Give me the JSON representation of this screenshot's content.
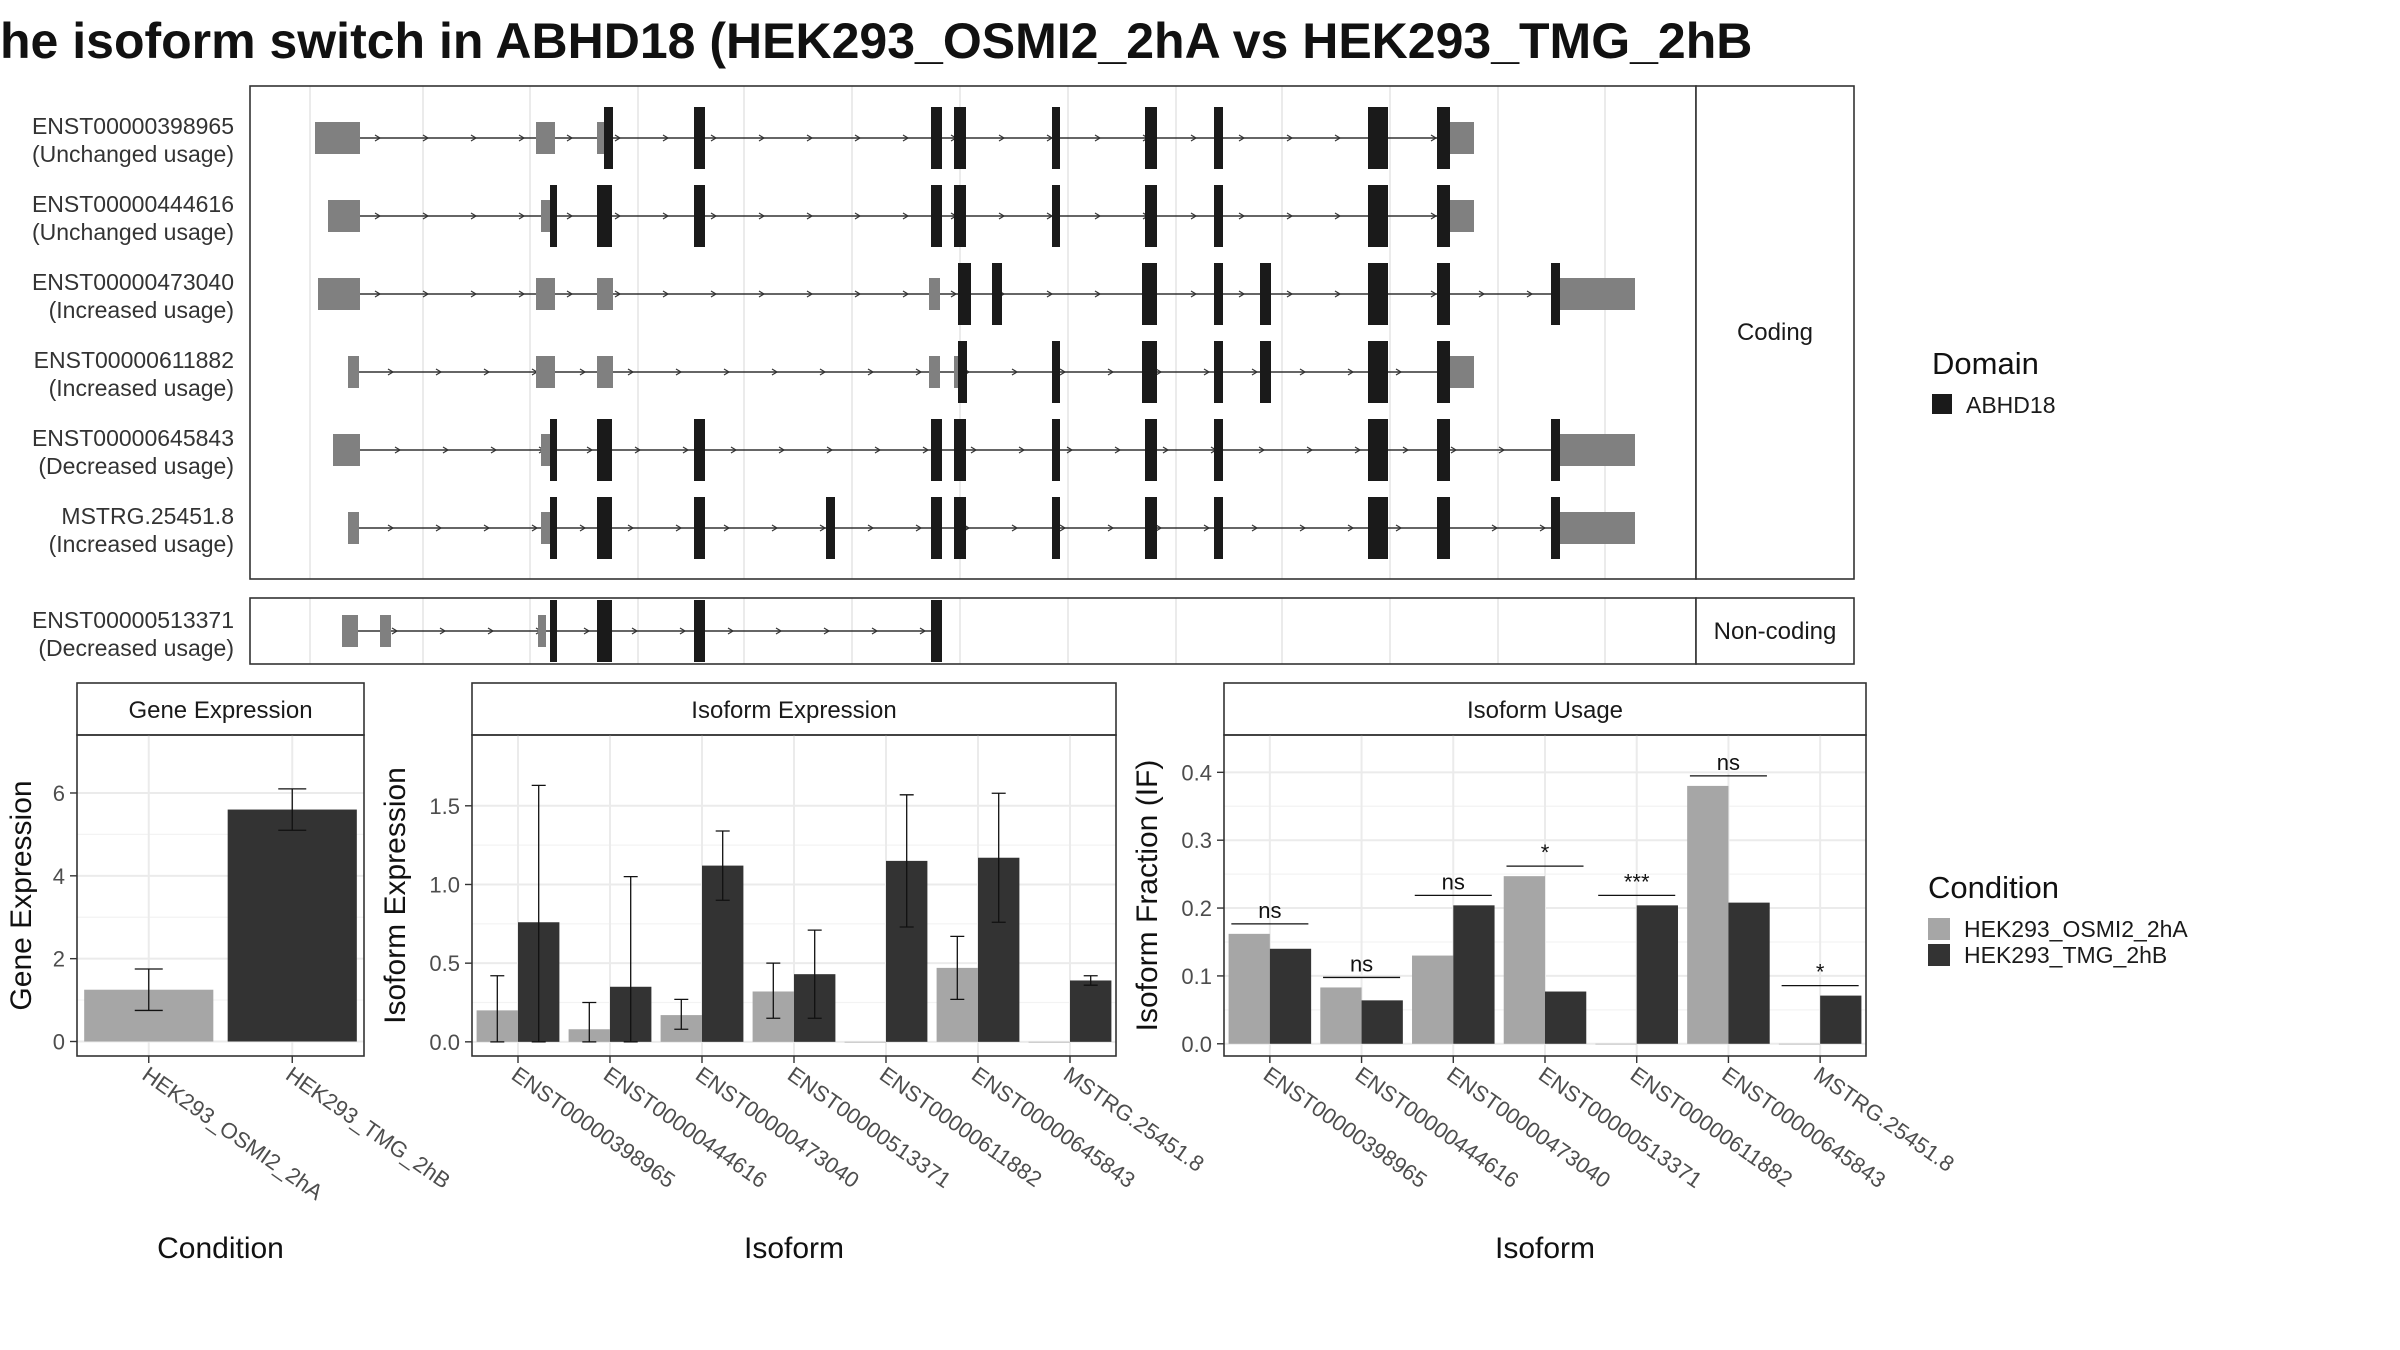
{
  "title": "he isoform switch in ABHD18 (HEK293_OSMI2_2hA vs HEK293_TMG_2hB",
  "structure": {
    "coding_isoforms": [
      {
        "name": "ENST00000398965",
        "usage": "(Unchanged usage)"
      },
      {
        "name": "ENST00000444616",
        "usage": "(Unchanged usage)"
      },
      {
        "name": "ENST00000473040",
        "usage": "(Increased usage)"
      },
      {
        "name": "ENST00000611882",
        "usage": "(Increased usage)"
      },
      {
        "name": "ENST00000645843",
        "usage": "(Decreased usage)"
      },
      {
        "name": "MSTRG.25451.8",
        "usage": "(Increased usage)"
      }
    ],
    "noncoding_isoforms": [
      {
        "name": "ENST00000513371",
        "usage": "(Decreased usage)"
      }
    ],
    "coding_strip": "Coding",
    "noncoding_strip": "Non-coding"
  },
  "legend_domain": {
    "title": "Domain",
    "items": [
      {
        "label": "ABHD18",
        "color": "#1a1a1a"
      }
    ]
  },
  "legend_condition": {
    "title": "Condition",
    "items": [
      {
        "label": "HEK293_OSMI2_2hA",
        "color": "#a6a6a6"
      },
      {
        "label": "HEK293_TMG_2hB",
        "color": "#333333"
      }
    ]
  },
  "chart_data": [
    {
      "type": "bar",
      "title": "Gene Expression",
      "xlabel": "Condition",
      "ylabel": "Gene Expression",
      "categories": [
        "HEK293_OSMI2_2hA",
        "HEK293_TMG_2hB"
      ],
      "values": [
        1.25,
        5.6
      ],
      "error_low": [
        0.75,
        5.1
      ],
      "error_high": [
        1.75,
        6.1
      ],
      "colors": [
        "#a6a6a6",
        "#333333"
      ],
      "ylim": [
        -0.35,
        7.4
      ],
      "yticks": [
        0,
        2,
        4,
        6
      ]
    },
    {
      "type": "bar",
      "title": "Isoform Expression",
      "xlabel": "Isoform",
      "ylabel": "Isoform Expression",
      "categories": [
        "ENST00000398965",
        "ENST00000444616",
        "ENST00000473040",
        "ENST00000513371",
        "ENST00000611882",
        "ENST00000645843",
        "MSTRG.25451.8"
      ],
      "series": [
        {
          "name": "HEK293_OSMI2_2hA",
          "values": [
            0.2,
            0.08,
            0.17,
            0.32,
            0.0,
            0.47,
            0.0
          ],
          "error_low": [
            0.0,
            0.0,
            0.08,
            0.15,
            0.0,
            0.27,
            0.0
          ],
          "error_high": [
            0.42,
            0.25,
            0.27,
            0.5,
            0.0,
            0.67,
            0.0
          ]
        },
        {
          "name": "HEK293_TMG_2hB",
          "values": [
            0.76,
            0.35,
            1.12,
            0.43,
            1.15,
            1.17,
            0.39
          ],
          "error_low": [
            0.0,
            0.0,
            0.9,
            0.15,
            0.73,
            0.76,
            0.36
          ],
          "error_high": [
            1.63,
            1.05,
            1.34,
            0.71,
            1.57,
            1.58,
            0.42
          ]
        }
      ],
      "ylim": [
        -0.09,
        1.95
      ],
      "yticks": [
        0.0,
        0.5,
        1.0,
        1.5
      ]
    },
    {
      "type": "bar",
      "title": "Isoform Usage",
      "xlabel": "Isoform",
      "ylabel": "Isoform Fraction (IF)",
      "categories": [
        "ENST00000398965",
        "ENST00000444616",
        "ENST00000473040",
        "ENST00000513371",
        "ENST00000611882",
        "ENST00000645843",
        "MSTRG.25451.8"
      ],
      "series": [
        {
          "name": "HEK293_OSMI2_2hA",
          "values": [
            0.162,
            0.083,
            0.13,
            0.247,
            0.0,
            0.38,
            0.0
          ]
        },
        {
          "name": "HEK293_TMG_2hB",
          "values": [
            0.14,
            0.064,
            0.204,
            0.077,
            0.204,
            0.208,
            0.071
          ]
        }
      ],
      "significance": [
        "ns",
        "ns",
        "ns",
        "*",
        "***",
        "ns",
        "*"
      ],
      "ylim": [
        -0.018,
        0.455
      ],
      "yticks": [
        0.0,
        0.1,
        0.2,
        0.3,
        0.4
      ]
    }
  ]
}
